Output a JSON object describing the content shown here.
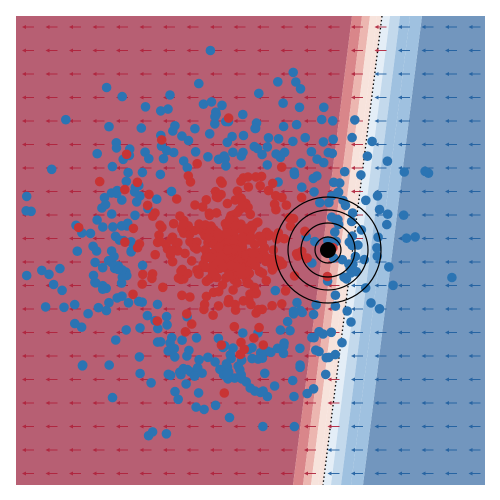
{
  "figure": {
    "kind": "classification-decision-field",
    "background": "#ffffff",
    "frame_color": "#ffffff"
  },
  "field": {
    "left_class_color": "#b75f73",
    "right_class_color": "#7296be",
    "boundary_bands": [
      "#d9868a",
      "#ecb6b0",
      "#f7e3dc",
      "#e4eef7",
      "#c3d9ec",
      "#9fc1e0"
    ],
    "boundary_line_color": "#000000",
    "boundary_line_style": "dotted"
  },
  "arrows": {
    "left_region_color": "#b0223b",
    "right_region_color": "#1f5fa0",
    "direction_left": "left",
    "direction_right": "left"
  },
  "points": {
    "red_class_color": "#c83434",
    "blue_class_color": "#2b74b3",
    "red_count": 420,
    "blue_count": 380,
    "edge_color": "none"
  },
  "highlight": {
    "marker_color": "#000000",
    "ring_color": "#000000",
    "ring_count": 4
  }
}
